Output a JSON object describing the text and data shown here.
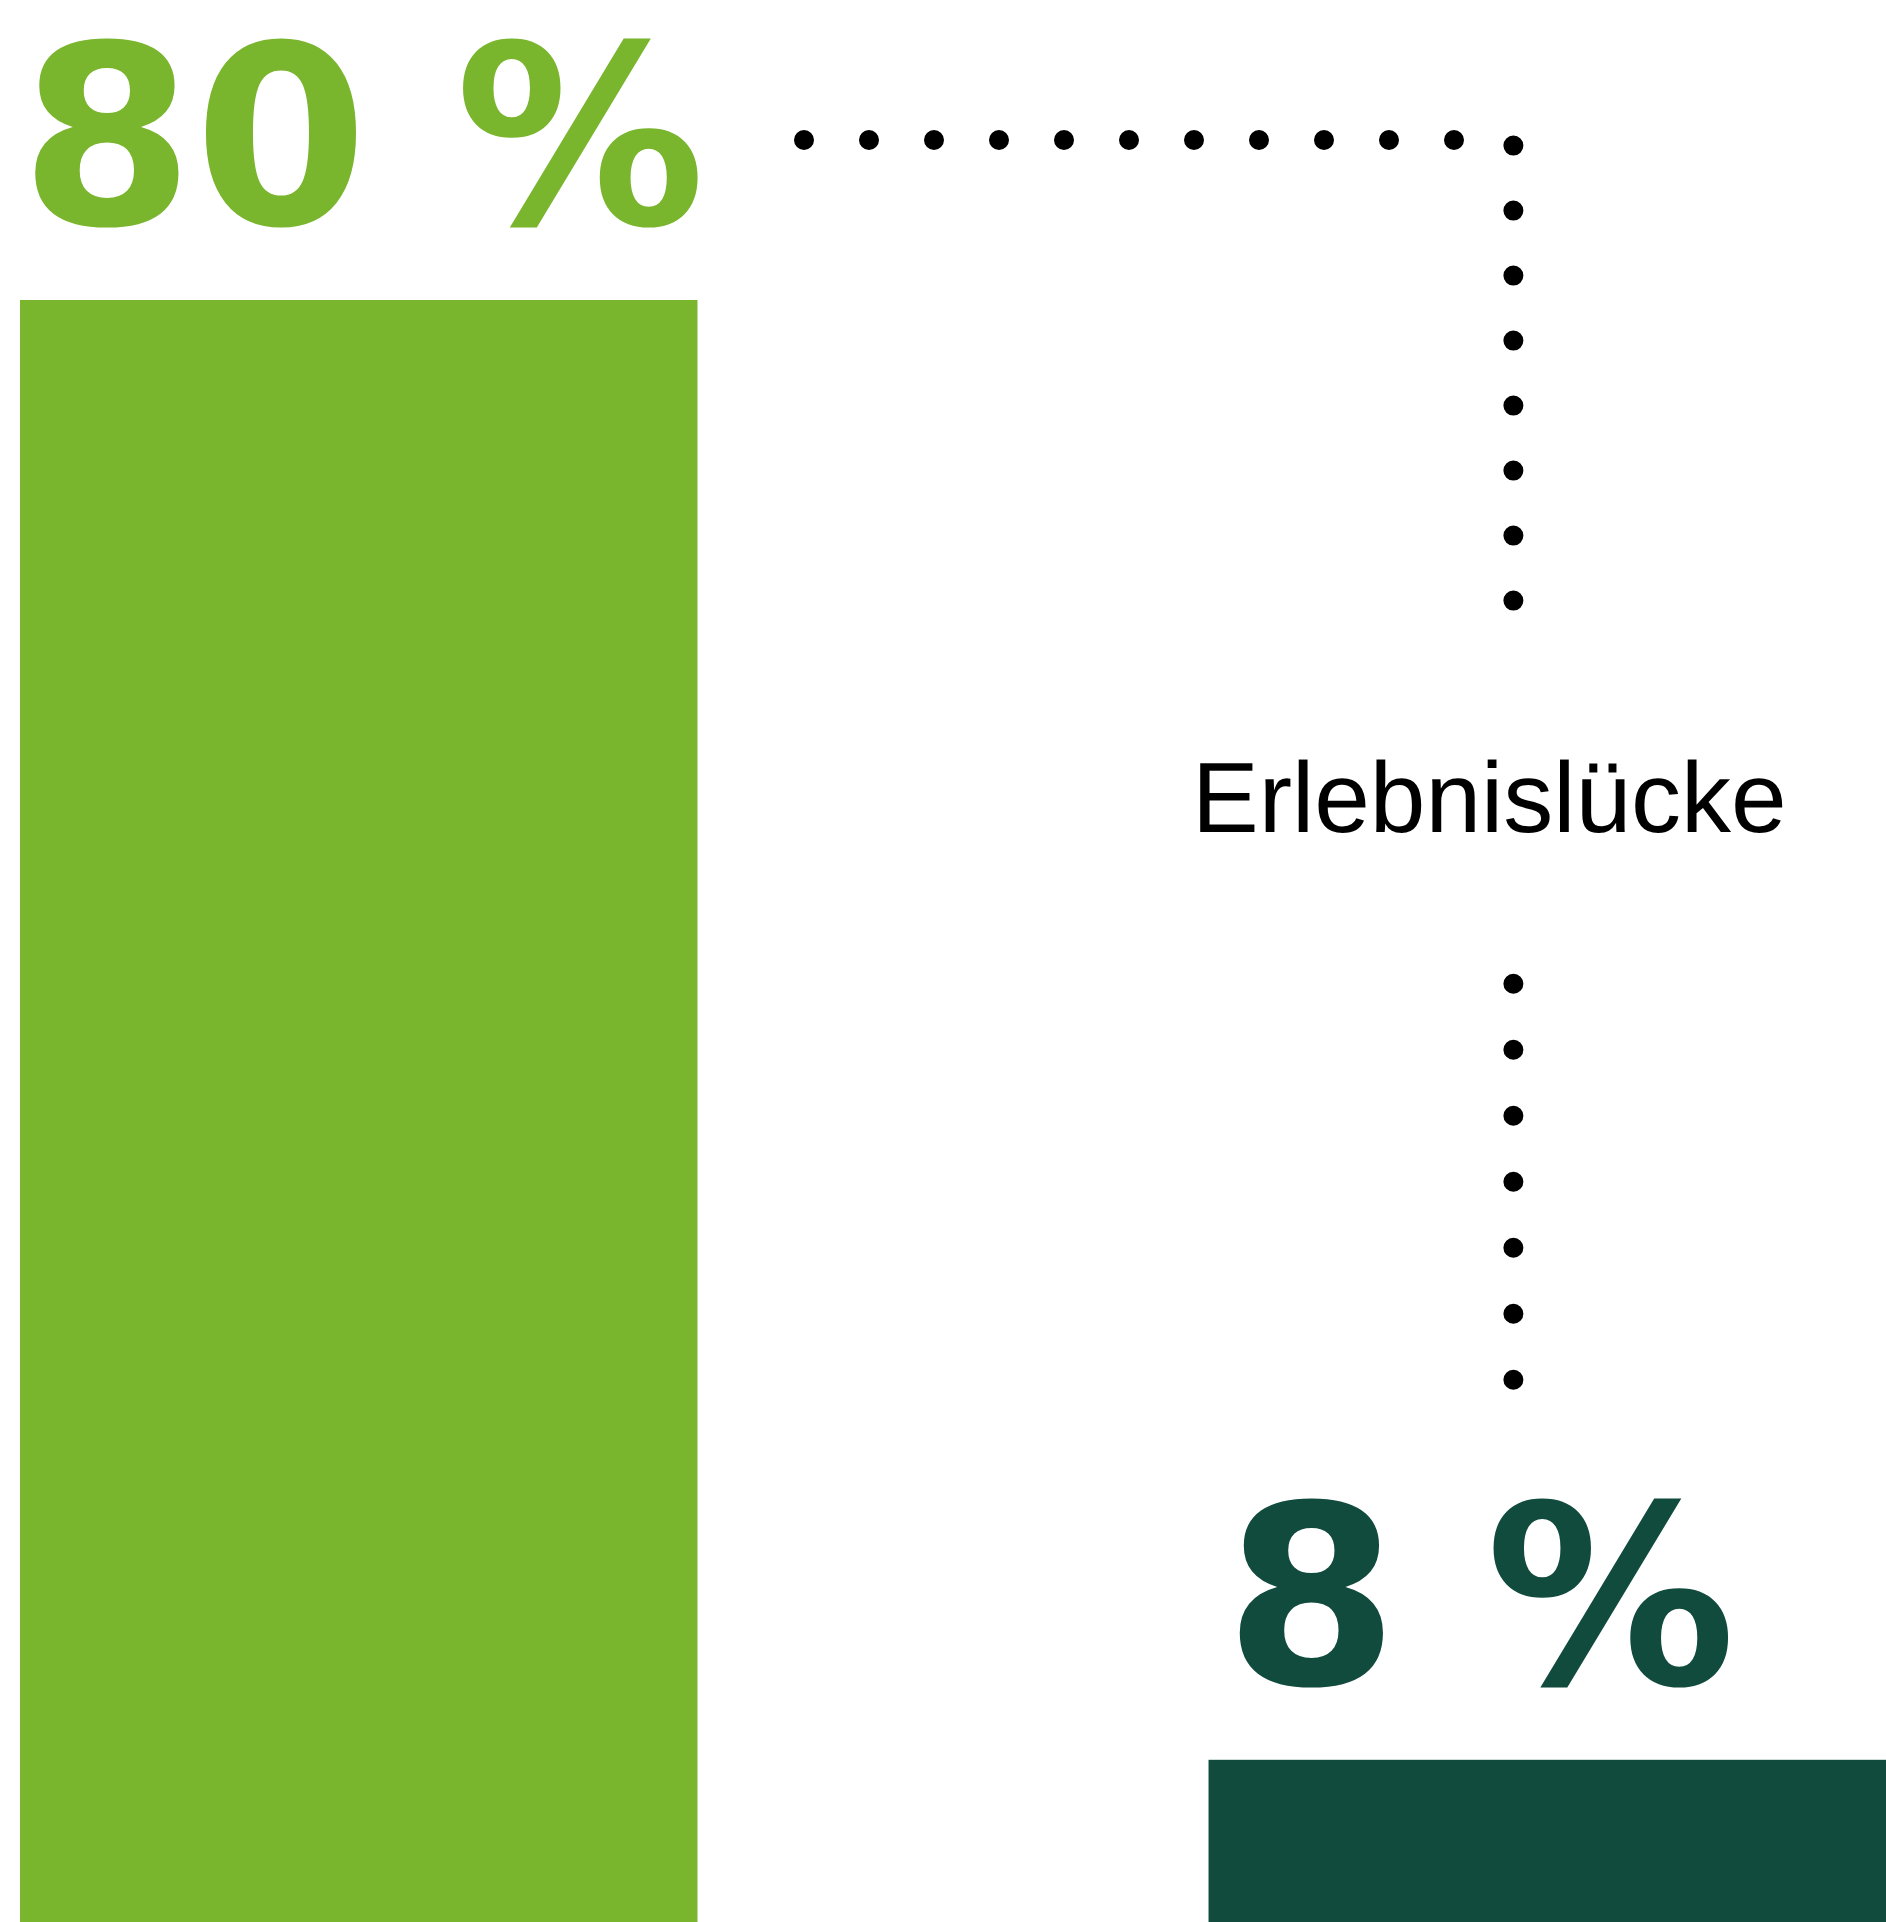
{
  "chart_data": {
    "type": "bar",
    "categories": [
      null,
      null
    ],
    "values": [
      80,
      8
    ],
    "colors": [
      "#7ab52e",
      "#114b3d"
    ],
    "value_labels": [
      "80 %",
      "8 %"
    ],
    "annotations": [
      "Erlebnislücke"
    ]
  }
}
